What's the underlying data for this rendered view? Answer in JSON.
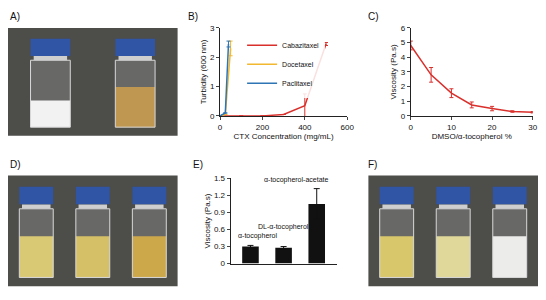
{
  "chart_data": [
    {
      "type": "line",
      "title": "B)",
      "x_label": "CTX Concentration (mg/mL)",
      "y_label": "Turbidity (600 nm)",
      "xlim": [
        0,
        600
      ],
      "xticks": [
        0,
        200,
        400,
        600
      ],
      "ylim": [
        0,
        3
      ],
      "yticks": [
        0,
        1,
        2,
        3
      ],
      "legend": "top",
      "series": [
        {
          "name": "Cabazitaxel",
          "color": "#d9302c",
          "x": [
            0,
            100,
            200,
            300,
            400,
            500
          ],
          "values": [
            0,
            0,
            0,
            0.05,
            0.35,
            2.45
          ],
          "errors": [
            0,
            0,
            0,
            0,
            0.4,
            0.05
          ]
        },
        {
          "name": "Docetaxel",
          "color": "#f2b830",
          "x": [
            0,
            25,
            50
          ],
          "values": [
            0,
            0.05,
            2.3
          ],
          "errors": [
            0,
            0,
            0.25
          ]
        },
        {
          "name": "Paclitaxel",
          "color": "#2e75b6",
          "x": [
            0,
            25,
            40
          ],
          "values": [
            0,
            0.1,
            2.45
          ],
          "errors": [
            0,
            0,
            0.1
          ]
        }
      ]
    },
    {
      "type": "line",
      "title": "C)",
      "x_label": "DMSO/α-tocopherol %",
      "y_label": "Viscosity (Pa.s)",
      "xlim": [
        0,
        30
      ],
      "xticks": [
        0,
        10,
        20,
        30
      ],
      "ylim": [
        0,
        6
      ],
      "yticks": [
        0,
        1,
        2,
        3,
        4,
        5,
        6
      ],
      "series": [
        {
          "color": "#d9302c",
          "x": [
            0,
            5,
            10,
            15,
            20,
            25,
            30
          ],
          "values": [
            4.8,
            2.8,
            1.55,
            0.75,
            0.5,
            0.3,
            0.25
          ],
          "errors": [
            0.3,
            0.5,
            0.3,
            0.2,
            0.15,
            0.05,
            0.05
          ]
        }
      ]
    },
    {
      "type": "bar",
      "title": "E)",
      "y_label": "Viscosity (Pa.s)",
      "tick_labels": "y",
      "color": "#111111",
      "categories": [
        "α-tocopherol",
        "DL-α-tocopherol",
        "α-tocopherol-acetate"
      ],
      "values": [
        0.3,
        0.28,
        1.05
      ],
      "errors": [
        0.02,
        0.02,
        0.27
      ],
      "ylim": [
        0,
        1.5
      ],
      "yticks": [
        0,
        0.3,
        0.6,
        0.9,
        1.2,
        1.5
      ]
    }
  ],
  "photos": [
    {
      "title": "A)",
      "vials": [
        {
          "color": "#f4f4f2"
        },
        {
          "color": "#b8862e"
        }
      ]
    },
    {
      "title": "D)",
      "vials": [
        {
          "color": "#d8c25a"
        },
        {
          "color": "#d4b84a"
        },
        {
          "color": "#c99a28"
        }
      ]
    },
    {
      "title": "F)",
      "vials": [
        {
          "color": "#d7c050"
        },
        {
          "color": "#e0d488"
        },
        {
          "color": "#eeeeea"
        }
      ]
    }
  ]
}
